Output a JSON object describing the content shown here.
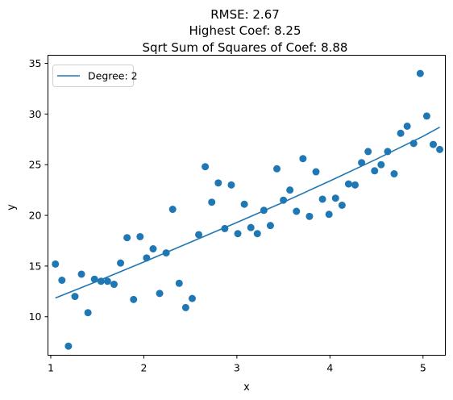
{
  "chart_data": {
    "type": "scatter",
    "title_lines": [
      "RMSE: 2.67",
      "Highest Coef: 8.25",
      "Sqrt Sum of Squares of Coef: 8.88"
    ],
    "xlabel": "x",
    "ylabel": "y",
    "xlim": [
      0.97,
      5.24
    ],
    "ylim": [
      6.2,
      35.8
    ],
    "xticks": [
      1,
      2,
      3,
      4,
      5
    ],
    "yticks": [
      10,
      15,
      20,
      25,
      30,
      35
    ],
    "grid": false,
    "legend": {
      "position": "upper-left",
      "entries": [
        "Degree: 2"
      ]
    },
    "colors": {
      "points": "#1f77b4",
      "line": "#1f77b4"
    },
    "series": [
      {
        "kind": "scatter",
        "x": [
          1.05,
          1.12,
          1.19,
          1.26,
          1.33,
          1.4,
          1.47,
          1.54,
          1.61,
          1.68,
          1.75,
          1.82,
          1.89,
          1.96,
          2.03,
          2.1,
          2.17,
          2.24,
          2.31,
          2.38,
          2.45,
          2.52,
          2.59,
          2.66,
          2.73,
          2.8,
          2.87,
          2.94,
          3.01,
          3.08,
          3.15,
          3.22,
          3.29,
          3.36,
          3.43,
          3.5,
          3.57,
          3.64,
          3.71,
          3.78,
          3.85,
          3.92,
          3.99,
          4.06,
          4.13,
          4.2,
          4.27,
          4.34,
          4.41,
          4.48,
          4.55,
          4.62,
          4.69,
          4.76,
          4.83,
          4.9,
          4.97,
          5.04,
          5.11,
          5.18
        ],
        "y": [
          15.2,
          13.6,
          7.1,
          12.0,
          14.2,
          10.4,
          13.7,
          13.5,
          13.5,
          13.2,
          15.3,
          17.8,
          11.7,
          17.9,
          15.8,
          16.7,
          12.3,
          16.3,
          20.6,
          13.3,
          10.9,
          11.8,
          18.1,
          24.8,
          21.3,
          23.2,
          18.7,
          23.0,
          18.2,
          21.1,
          18.8,
          18.2,
          20.5,
          19.0,
          24.6,
          21.5,
          22.5,
          20.4,
          25.6,
          19.9,
          24.3,
          21.6,
          20.1,
          21.7,
          21.0,
          23.1,
          23.0,
          25.2,
          26.3,
          24.4,
          25.0,
          26.3,
          24.1,
          28.1,
          28.8,
          27.1,
          34.0,
          29.8,
          27.0,
          26.5
        ]
      },
      {
        "kind": "line",
        "name": "Degree: 2",
        "x": [
          1.05,
          1.5,
          2.0,
          2.5,
          3.0,
          3.5,
          4.0,
          4.5,
          5.0,
          5.18
        ],
        "y": [
          11.85,
          13.5,
          15.4,
          17.35,
          19.3,
          21.3,
          23.4,
          25.55,
          27.8,
          28.7
        ]
      }
    ]
  }
}
